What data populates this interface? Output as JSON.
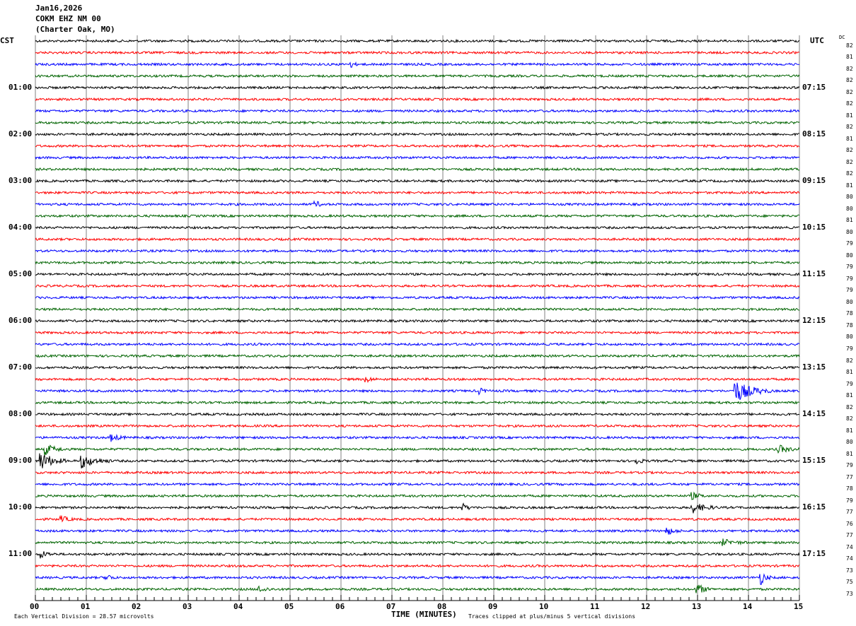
{
  "chart_data": {
    "type": "line",
    "title": [
      "Jan16,2026",
      "COKM EHZ NM 00",
      "(Charter Oak, MO)"
    ],
    "left_timezone": "CST",
    "right_timezone": "UTC",
    "dc_label": "DC",
    "left_hour_labels": [
      "01:00",
      "02:00",
      "03:00",
      "04:00",
      "05:00",
      "06:00",
      "07:00",
      "08:00",
      "09:00",
      "10:00",
      "11:00"
    ],
    "right_hour_labels": [
      "07:15",
      "08:15",
      "09:15",
      "10:15",
      "11:15",
      "12:15",
      "13:15",
      "14:15",
      "15:15",
      "16:15",
      "17:15"
    ],
    "dc_values": [
      "82",
      "81",
      "82",
      "82",
      "82",
      "82",
      "81",
      "82",
      "81",
      "82",
      "82",
      "82",
      "81",
      "80",
      "80",
      "81",
      "80",
      "79",
      "80",
      "79",
      "79",
      "79",
      "80",
      "78",
      "78",
      "80",
      "79",
      "82",
      "81",
      "79",
      "81",
      "82",
      "82",
      "81",
      "80",
      "81",
      "79",
      "77",
      "78",
      "79",
      "77",
      "76",
      "77",
      "74",
      "74",
      "73",
      "75",
      "73"
    ],
    "trace_colors": [
      "#000000",
      "#ff0000",
      "#0000ff",
      "#006400"
    ],
    "xlabel": "TIME (MINUTES)",
    "xticks": [
      "00",
      "01",
      "02",
      "03",
      "04",
      "05",
      "06",
      "07",
      "08",
      "09",
      "10",
      "11",
      "12",
      "13",
      "14",
      "15"
    ],
    "xlim": [
      0,
      15
    ],
    "scale_note": "Each Vertical Division =   28.57 microvolts",
    "clip_note": "Traces clipped at plus/minus 5 vertical divisions",
    "events": [
      {
        "row": 2,
        "minute": 6.2,
        "amp": 0.6,
        "dur": 0.15
      },
      {
        "row": 14,
        "minute": 5.5,
        "amp": 0.7,
        "dur": 0.2
      },
      {
        "row": 29,
        "minute": 6.5,
        "amp": 0.7,
        "dur": 0.2
      },
      {
        "row": 30,
        "minute": 8.7,
        "amp": 0.8,
        "dur": 0.2
      },
      {
        "row": 30,
        "minute": 13.75,
        "amp": 2.5,
        "dur": 0.7
      },
      {
        "row": 34,
        "minute": 1.5,
        "amp": 0.8,
        "dur": 0.3
      },
      {
        "row": 35,
        "minute": 0.2,
        "amp": 1.2,
        "dur": 0.4
      },
      {
        "row": 35,
        "minute": 14.6,
        "amp": 0.9,
        "dur": 0.4
      },
      {
        "row": 36,
        "minute": 0.1,
        "amp": 2.2,
        "dur": 0.5
      },
      {
        "row": 36,
        "minute": 0.9,
        "amp": 1.6,
        "dur": 0.6
      },
      {
        "row": 36,
        "minute": 11.8,
        "amp": 0.7,
        "dur": 0.2
      },
      {
        "row": 39,
        "minute": 12.9,
        "amp": 0.7,
        "dur": 0.3
      },
      {
        "row": 40,
        "minute": 8.4,
        "amp": 0.8,
        "dur": 0.2
      },
      {
        "row": 40,
        "minute": 12.9,
        "amp": 1.2,
        "dur": 0.5
      },
      {
        "row": 41,
        "minute": 0.5,
        "amp": 0.7,
        "dur": 0.3
      },
      {
        "row": 42,
        "minute": 12.4,
        "amp": 0.9,
        "dur": 0.3
      },
      {
        "row": 43,
        "minute": 13.5,
        "amp": 0.7,
        "dur": 0.5
      },
      {
        "row": 44,
        "minute": 0.1,
        "amp": 0.9,
        "dur": 0.3
      },
      {
        "row": 46,
        "minute": 1.4,
        "amp": 0.8,
        "dur": 0.2
      },
      {
        "row": 46,
        "minute": 14.25,
        "amp": 1.5,
        "dur": 0.2
      },
      {
        "row": 47,
        "minute": 4.4,
        "amp": 0.7,
        "dur": 0.3
      },
      {
        "row": 47,
        "minute": 13.0,
        "amp": 1.2,
        "dur": 0.3
      }
    ]
  }
}
